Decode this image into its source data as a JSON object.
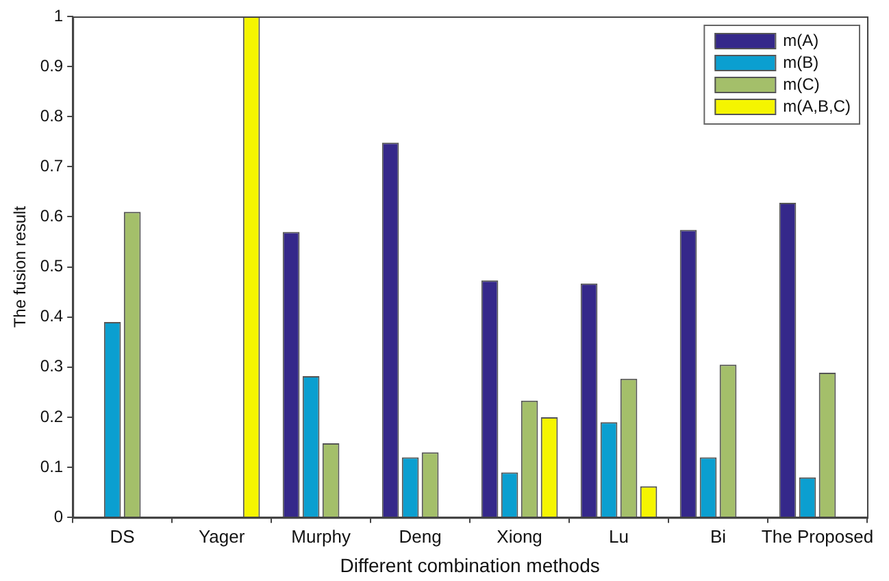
{
  "chart_data": {
    "type": "bar",
    "xlabel": "Different combination methods",
    "ylabel": "The fusion result",
    "categories": [
      "DS",
      "Yager",
      "Murphy",
      "Deng",
      "Xiong",
      "Lu",
      "Bi",
      "The Proposed"
    ],
    "series": [
      {
        "name": "m(A)",
        "color": "#35288a",
        "values": [
          0,
          0,
          0.57,
          0.748,
          0.473,
          0.467,
          0.574,
          0.628
        ]
      },
      {
        "name": "m(B)",
        "color": "#0b9fd0",
        "values": [
          0.39,
          0,
          0.282,
          0.12,
          0.09,
          0.19,
          0.12,
          0.08
        ]
      },
      {
        "name": "m(C)",
        "color": "#a4bf6a",
        "values": [
          0.61,
          0,
          0.148,
          0.13,
          0.233,
          0.277,
          0.305,
          0.289
        ]
      },
      {
        "name": "m(A,B,C)",
        "color": "#f5f500",
        "values": [
          0,
          1,
          0,
          0,
          0.2,
          0.062,
          0,
          0
        ]
      }
    ],
    "ylim": [
      0,
      1
    ],
    "yticks": [
      0,
      0.1,
      0.2,
      0.3,
      0.4,
      0.5,
      0.6,
      0.7,
      0.8,
      0.9,
      1
    ],
    "grid": false,
    "legend": "top right"
  }
}
